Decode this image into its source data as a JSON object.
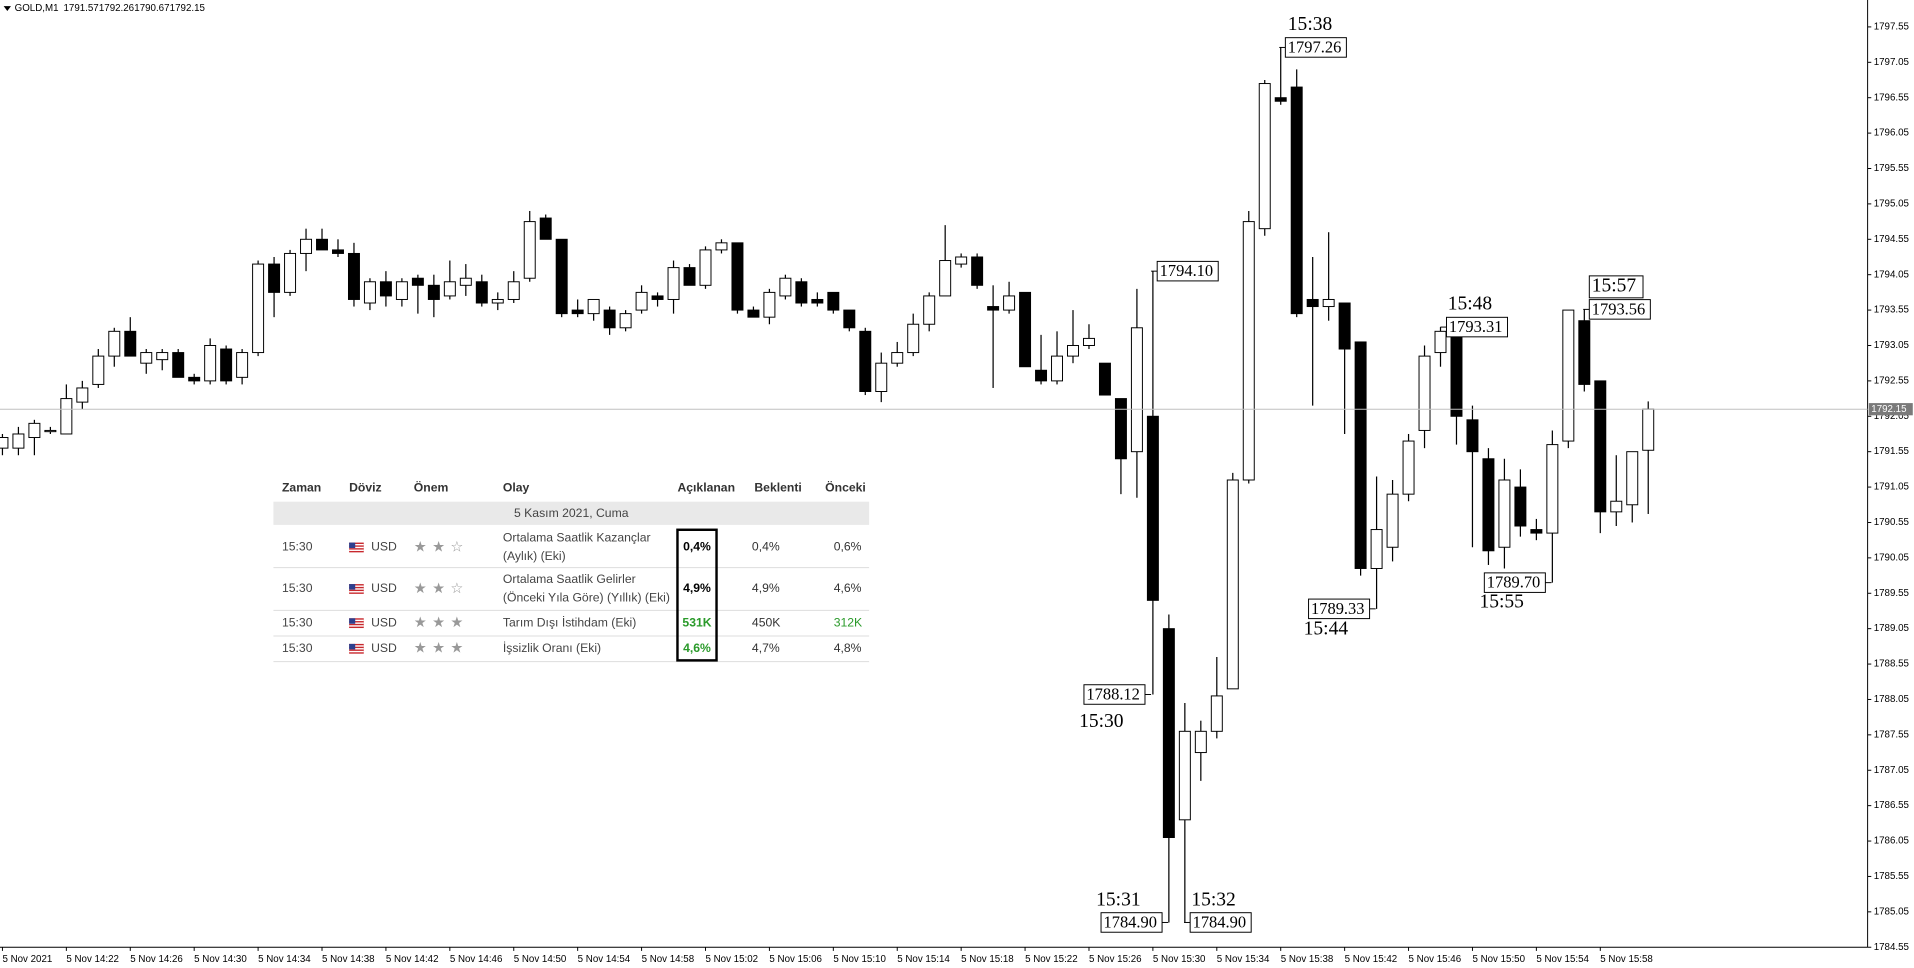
{
  "chart_data": {
    "type": "candlestick",
    "title": "GOLD,M1",
    "up_color": "#ffffff",
    "down_color": "#000000",
    "outline_color": "#000000",
    "price_line_color": "#c0c0c0",
    "categories": [
      "5 Nov 2021",
      null,
      null,
      null,
      "5 Nov 14:22",
      null,
      null,
      null,
      "5 Nov 14:26",
      null,
      null,
      null,
      "5 Nov 14:30",
      null,
      null,
      null,
      "5 Nov 14:34",
      null,
      null,
      null,
      "5 Nov 14:38",
      null,
      null,
      null,
      "5 Nov 14:42",
      null,
      null,
      null,
      "5 Nov 14:46",
      null,
      null,
      null,
      "5 Nov 14:50",
      null,
      null,
      null,
      "5 Nov 14:54",
      null,
      null,
      null,
      "5 Nov 14:58",
      null,
      null,
      null,
      "5 Nov 15:02",
      null,
      null,
      null,
      "5 Nov 15:06",
      null,
      null,
      null,
      "5 Nov 15:10",
      null,
      null,
      null,
      "5 Nov 15:14",
      null,
      null,
      null,
      "5 Nov 15:18",
      null,
      null,
      null,
      "5 Nov 15:22",
      null,
      null,
      null,
      "5 Nov 15:26",
      null,
      null,
      null,
      "5 Nov 15:30",
      null,
      null,
      null,
      "5 Nov 15:34",
      null,
      null,
      null,
      "5 Nov 15:38",
      null,
      null,
      null,
      "5 Nov 15:42",
      null,
      null,
      null,
      "5 Nov 15:46",
      null,
      null,
      null,
      "5 Nov 15:50",
      null,
      null,
      null,
      "5 Nov 15:54",
      null,
      null,
      null,
      "5 Nov 15:58",
      null,
      null,
      null
    ],
    "open": [
      1791.6,
      1791.6,
      1791.75,
      1791.85,
      1791.8,
      1792.25,
      1792.5,
      1792.9,
      1793.25,
      1792.8,
      1792.85,
      1792.95,
      1792.6,
      1792.55,
      1793.0,
      1792.6,
      1792.95,
      1794.2,
      1793.8,
      1794.35,
      1794.55,
      1794.4,
      1794.35,
      1793.65,
      1793.95,
      1793.7,
      1794.0,
      1793.9,
      1793.75,
      1793.9,
      1793.95,
      1793.65,
      1793.7,
      1794.0,
      1794.85,
      1794.55,
      1793.55,
      1793.5,
      1793.55,
      1793.3,
      1793.55,
      1793.75,
      1793.7,
      1794.15,
      1793.9,
      1794.4,
      1794.5,
      1793.55,
      1793.45,
      1793.75,
      1793.95,
      1793.7,
      1793.8,
      1793.55,
      1793.25,
      1792.4,
      1792.8,
      1792.95,
      1793.35,
      1793.75,
      1794.2,
      1794.3,
      1793.6,
      1793.55,
      1793.8,
      1792.7,
      1792.55,
      1792.9,
      1793.05,
      1792.8,
      1792.3,
      1791.55,
      1792.05,
      1789.05,
      1786.35,
      1787.3,
      1787.6,
      1788.2,
      1791.15,
      1794.7,
      1796.55,
      1796.7,
      1793.7,
      1793.6,
      1793.65,
      1793.1,
      1789.9,
      1790.2,
      1790.95,
      1791.85,
      1792.95,
      1793.25,
      1792.0,
      1791.45,
      1790.2,
      1791.05,
      1790.45,
      1790.4,
      1791.7,
      1793.4,
      1792.55,
      1790.7,
      1790.8,
      1791.57
    ],
    "high": [
      1791.8,
      1791.9,
      1792.0,
      1791.9,
      1792.5,
      1792.55,
      1793.0,
      1793.3,
      1793.45,
      1793.0,
      1793.0,
      1793.0,
      1792.65,
      1793.15,
      1793.05,
      1793.0,
      1794.25,
      1794.3,
      1794.4,
      1794.7,
      1794.7,
      1794.55,
      1794.5,
      1794.0,
      1794.1,
      1794.0,
      1794.05,
      1794.05,
      1794.25,
      1794.2,
      1794.05,
      1793.8,
      1794.1,
      1794.95,
      1794.9,
      1794.55,
      1793.7,
      1793.7,
      1793.6,
      1793.55,
      1793.9,
      1793.8,
      1794.25,
      1794.2,
      1794.45,
      1794.55,
      1794.5,
      1793.6,
      1793.85,
      1794.05,
      1794.0,
      1793.8,
      1793.8,
      1793.55,
      1793.3,
      1792.95,
      1793.1,
      1793.5,
      1793.8,
      1794.75,
      1794.35,
      1794.35,
      1793.9,
      1793.95,
      1793.8,
      1793.2,
      1793.25,
      1793.55,
      1793.35,
      1792.8,
      1792.3,
      1793.85,
      1794.1,
      1789.25,
      1788.0,
      1787.75,
      1788.65,
      1791.25,
      1794.95,
      1796.8,
      1797.26,
      1796.95,
      1794.3,
      1794.65,
      1793.65,
      1793.1,
      1791.2,
      1791.15,
      1791.8,
      1793.05,
      1793.31,
      1793.3,
      1792.2,
      1791.6,
      1791.45,
      1791.3,
      1790.6,
      1791.85,
      1793.55,
      1793.56,
      1792.55,
      1791.5,
      1791.55,
      1792.26
    ],
    "low": [
      1791.5,
      1791.5,
      1791.5,
      1791.8,
      1791.8,
      1792.15,
      1792.45,
      1792.75,
      1792.9,
      1792.65,
      1792.7,
      1792.6,
      1792.5,
      1792.5,
      1792.5,
      1792.5,
      1792.9,
      1793.45,
      1793.75,
      1794.1,
      1794.4,
      1794.3,
      1793.6,
      1793.55,
      1793.6,
      1793.6,
      1793.5,
      1793.45,
      1793.7,
      1793.75,
      1793.6,
      1793.55,
      1793.65,
      1793.95,
      1794.55,
      1793.45,
      1793.45,
      1793.4,
      1793.2,
      1793.25,
      1793.5,
      1793.6,
      1793.5,
      1793.9,
      1793.85,
      1794.35,
      1793.5,
      1793.45,
      1793.35,
      1793.7,
      1793.6,
      1793.6,
      1793.5,
      1793.25,
      1792.35,
      1792.25,
      1792.75,
      1792.9,
      1793.25,
      1793.75,
      1794.15,
      1793.85,
      1792.45,
      1793.5,
      1792.75,
      1792.5,
      1792.5,
      1792.8,
      1793.0,
      1792.35,
      1790.95,
      1790.9,
      1788.12,
      1784.9,
      1784.9,
      1786.9,
      1787.5,
      1788.2,
      1791.1,
      1794.6,
      1796.45,
      1793.45,
      1792.2,
      1793.4,
      1791.8,
      1789.8,
      1789.33,
      1790.0,
      1790.85,
      1791.6,
      1792.75,
      1791.65,
      1790.2,
      1789.95,
      1789.9,
      1790.35,
      1790.3,
      1789.7,
      1791.6,
      1792.4,
      1790.4,
      1790.5,
      1790.55,
      1790.67
    ],
    "close": [
      1791.75,
      1791.8,
      1791.95,
      1791.85,
      1792.3,
      1792.45,
      1792.9,
      1793.25,
      1792.9,
      1792.95,
      1792.95,
      1792.6,
      1792.55,
      1793.05,
      1792.55,
      1792.95,
      1794.2,
      1793.8,
      1794.35,
      1794.55,
      1794.4,
      1794.35,
      1793.7,
      1793.95,
      1793.75,
      1793.95,
      1793.9,
      1793.7,
      1793.95,
      1794.0,
      1793.65,
      1793.7,
      1793.95,
      1794.8,
      1794.55,
      1793.5,
      1793.5,
      1793.7,
      1793.3,
      1793.5,
      1793.8,
      1793.7,
      1794.15,
      1793.9,
      1794.4,
      1794.5,
      1793.55,
      1793.45,
      1793.8,
      1794.0,
      1793.65,
      1793.65,
      1793.55,
      1793.3,
      1792.4,
      1792.8,
      1792.95,
      1793.35,
      1793.75,
      1794.25,
      1794.3,
      1793.9,
      1793.55,
      1793.75,
      1792.75,
      1792.55,
      1792.9,
      1793.05,
      1793.15,
      1792.35,
      1791.45,
      1793.3,
      1789.45,
      1786.1,
      1787.6,
      1787.6,
      1788.1,
      1791.15,
      1794.8,
      1796.75,
      1796.5,
      1793.5,
      1793.6,
      1793.7,
      1793.0,
      1789.9,
      1790.45,
      1790.95,
      1791.7,
      1792.9,
      1793.25,
      1792.05,
      1791.55,
      1790.15,
      1791.15,
      1790.5,
      1790.4,
      1791.65,
      1793.55,
      1792.5,
      1790.7,
      1790.85,
      1791.55,
      1792.15
    ],
    "ylim": [
      1784.55,
      1797.93
    ],
    "yticks": [
      1784.55,
      1785.05,
      1785.55,
      1786.05,
      1786.55,
      1787.05,
      1787.55,
      1788.05,
      1788.55,
      1789.05,
      1789.55,
      1790.05,
      1790.55,
      1791.05,
      1791.55,
      1792.05,
      1792.55,
      1793.05,
      1793.55,
      1794.05,
      1794.55,
      1795.05,
      1795.55,
      1796.05,
      1796.55,
      1797.05,
      1797.55
    ],
    "annotations": [
      {
        "time": "15:38",
        "price": 1797.26
      },
      {
        "price": {
          "value": 1794.1,
          "label": "1794.10"
        }
      },
      {
        "time": "15:30",
        "price": 1788.12
      },
      {
        "time": "15:31",
        "price": {
          "value": 1784.9,
          "label": "1784.90"
        }
      },
      {
        "time": "15:32",
        "price": {
          "value": 1784.9,
          "label": "1784.90"
        }
      },
      {
        "time": "15:44",
        "price": 1789.33
      },
      {
        "time": "15:48",
        "price": 1793.31
      },
      {
        "time": "15:55",
        "price": {
          "value": 1789.7,
          "label": "1789.70"
        }
      },
      {
        "time": "15:57",
        "price": 1793.56
      }
    ]
  },
  "calendar": {
    "headers": [
      "Zaman",
      "Döviz",
      "Önem",
      "Olay",
      "Açıklanan",
      "Beklenti",
      "Önceki"
    ],
    "date": "5 Kasım 2021, Cuma",
    "rows": [
      {
        "time": "15:30",
        "currency": "USD",
        "importance": 2,
        "event": [
          "Ortalama Saatlik Kazançlar",
          "(Aylık) (Eki)"
        ],
        "actual": "0,4%",
        "forecast": "0,4%",
        "previous": "0,6%",
        "actual_color": "#000000",
        "previous_color": "#333333"
      },
      {
        "time": "15:30",
        "currency": "USD",
        "importance": 2,
        "event": [
          "Ortalama Saatlik Gelirler",
          "(Önceki Yıla Göre) (Yıllık) (Eki)"
        ],
        "actual": "4,9%",
        "forecast": "4,9%",
        "previous": "4,6%",
        "actual_color": "#000000",
        "previous_color": "#333333"
      },
      {
        "time": "15:30",
        "currency": "USD",
        "importance": 3,
        "event": [
          "Tarım Dışı İstihdam (Eki)"
        ],
        "actual": "531K",
        "forecast": "450K",
        "previous": "312K",
        "actual_color": "#2a9a2a",
        "previous_color": "#2a9a2a"
      },
      {
        "time": "15:30",
        "currency": "USD",
        "importance": 3,
        "event": [
          "İşsizlik Oranı (Eki)"
        ],
        "actual": "4,6%",
        "forecast": "4,7%",
        "previous": "4,8%",
        "actual_color": "#2a9a2a",
        "previous_color": "#333333"
      }
    ]
  }
}
